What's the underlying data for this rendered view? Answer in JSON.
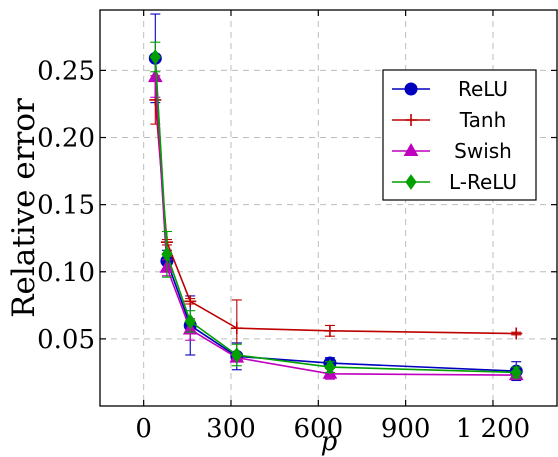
{
  "chart_data": {
    "type": "line",
    "title": "",
    "xlabel": "p",
    "ylabel": "Relative error",
    "xlim": [
      -150,
      1420
    ],
    "ylim": [
      0.0,
      0.295
    ],
    "xticks": [
      0,
      300,
      600,
      900,
      1200
    ],
    "xtick_labels": [
      "0",
      "300",
      "600",
      "900",
      "1 200"
    ],
    "yticks": [
      0.05,
      0.1,
      0.15,
      0.2,
      0.25
    ],
    "ytick_labels": [
      "0.05",
      "0.10",
      "0.15",
      "0.20",
      "0.25"
    ],
    "grid": true,
    "legend_position": "top-right",
    "series": [
      {
        "name": "ReLU",
        "color": "#0000bf",
        "marker": "circle",
        "x": [
          40,
          80,
          160,
          320,
          640,
          1280
        ],
        "y": [
          0.259,
          0.108,
          0.06,
          0.037,
          0.032,
          0.026
        ],
        "err": [
          0.033,
          0.008,
          0.022,
          0.01,
          0.004,
          0.007
        ]
      },
      {
        "name": "Tanh",
        "color": "#bf0000",
        "marker": "plus",
        "x": [
          40,
          80,
          160,
          320,
          640,
          1280
        ],
        "y": [
          0.228,
          0.122,
          0.078,
          0.058,
          0.056,
          0.054
        ],
        "err": [
          0.018,
          0.002,
          0.002,
          0.021,
          0.004,
          0.001
        ]
      },
      {
        "name": "Swish",
        "color": "#bf00bf",
        "marker": "triangle",
        "x": [
          40,
          80,
          160,
          320,
          640,
          1280
        ],
        "y": [
          0.245,
          0.103,
          0.057,
          0.036,
          0.024,
          0.023
        ],
        "err": [
          0.015,
          0.006,
          0.008,
          0.002,
          0.004,
          0.003
        ]
      },
      {
        "name": "L-ReLU",
        "color": "#00a000",
        "marker": "diamond",
        "x": [
          40,
          80,
          160,
          320,
          640,
          1280
        ],
        "y": [
          0.26,
          0.113,
          0.063,
          0.038,
          0.029,
          0.025
        ],
        "err": [
          0.011,
          0.017,
          0.008,
          0.008,
          0.004,
          0.004
        ]
      }
    ]
  }
}
